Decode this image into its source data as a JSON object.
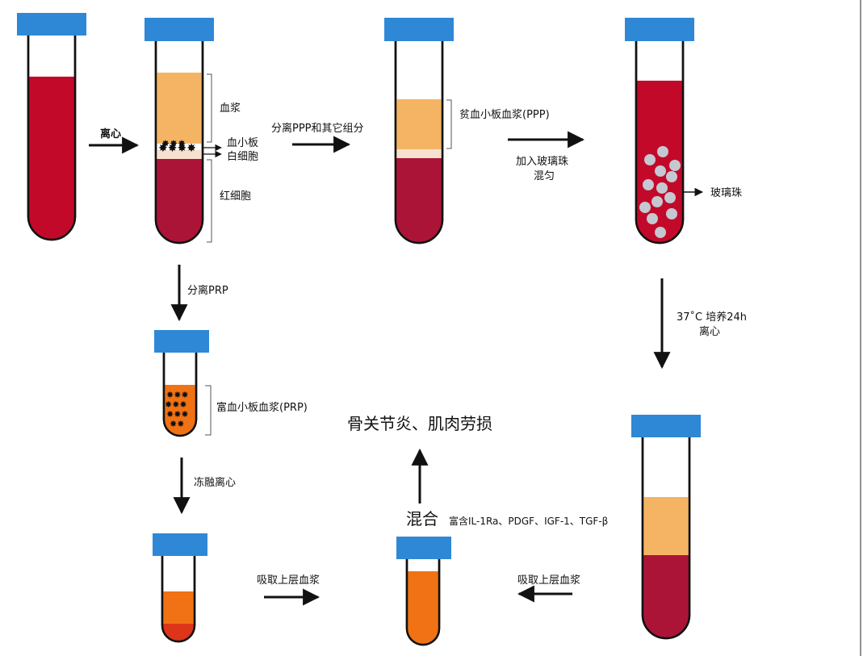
{
  "colors": {
    "cap": "#2e88d6",
    "blood": "#c3092a",
    "red_cells": "#ac1437",
    "plasma": "#f4b463",
    "buffy": "#f8e0cf",
    "prp": "#f07214",
    "platelet": "#e85420",
    "bead": "#c4c8d1",
    "bottom_red": "#dc3519"
  },
  "labels": {
    "centrifuge": "离心",
    "plasma": "血浆",
    "platelets": "血小板",
    "wbc": "白细胞",
    "rbc": "红细胞",
    "separate_ppp": "分离PPP和其它组分",
    "ppp": "贫血小板血浆(PPP)",
    "add_beads_1": "加入玻璃珠",
    "add_beads_2": "混匀",
    "beads": "玻璃珠",
    "separate_prp": "分离PRP",
    "prp": "富血小板血浆(PRP)",
    "freeze_thaw": "冻融离心",
    "incubate_1": "37˚C 培养24h",
    "incubate_2": "离心",
    "indication": "骨关节炎、肌肉劳损",
    "mix": "混合",
    "rich_in": "富含IL-1Ra、PDGF、IGF-1、TGF-β",
    "aspirate_left": "吸取上层血浆",
    "aspirate_right": "吸取上层血浆"
  }
}
